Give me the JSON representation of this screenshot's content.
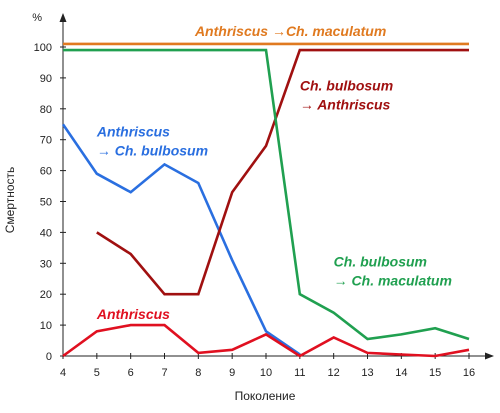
{
  "chart_data": {
    "type": "line",
    "xlabel": "Поколение",
    "ylabel": "Смертность",
    "yunit": "%",
    "xlim": [
      4,
      16
    ],
    "ylim": [
      0,
      100
    ],
    "x_ticks": [
      4,
      5,
      6,
      7,
      8,
      9,
      10,
      11,
      12,
      13,
      14,
      15,
      16
    ],
    "y_ticks": [
      0,
      10,
      20,
      30,
      40,
      50,
      60,
      70,
      80,
      90,
      100
    ],
    "grid": false,
    "series": [
      {
        "name": "Anthriscus →Ch. maculatum",
        "color": "#e07a20",
        "x": [
          4,
          16
        ],
        "y": [
          101,
          101
        ]
      },
      {
        "name": "Anthriscus → Ch. bulbosum",
        "color": "#2a6fe0",
        "x": [
          4,
          5,
          6,
          7,
          8,
          9,
          10,
          11
        ],
        "y": [
          75,
          59,
          53,
          62,
          56,
          31,
          8,
          0.5
        ]
      },
      {
        "name": "Ch. bulbosum → Anthriscus",
        "color": "#a01010",
        "x": [
          5,
          6,
          7,
          8,
          9,
          10,
          11,
          12,
          13,
          14,
          15,
          16
        ],
        "y": [
          40,
          33,
          20,
          20,
          53,
          68,
          99,
          99,
          99,
          99,
          99,
          99
        ]
      },
      {
        "name": "Ch. bulbosum → Ch. maculatum",
        "color": "#20a050",
        "x": [
          4,
          5,
          6,
          7,
          8,
          9,
          10,
          11,
          12,
          13,
          14,
          15,
          16
        ],
        "y": [
          99,
          99,
          99,
          99,
          99,
          99,
          99,
          20,
          14,
          5.5,
          7,
          9,
          5.5
        ]
      },
      {
        "name": "Anthriscus",
        "color": "#e01020",
        "x": [
          4,
          5,
          6,
          7,
          8,
          9,
          10,
          11,
          12,
          13,
          14,
          15,
          16
        ],
        "y": [
          0,
          8,
          10,
          10,
          1,
          2,
          7,
          0,
          6,
          1,
          0.5,
          0,
          2
        ]
      }
    ],
    "labels": [
      {
        "lines": [
          "Anthriscus →Ch. maculatum"
        ],
        "color": "#e07a20",
        "x": 7.9,
        "y": 103.5
      },
      {
        "lines": [
          "Ch. bulbosum",
          "→ Anthriscus"
        ],
        "color": "#a01010",
        "x": 11,
        "y": 86
      },
      {
        "lines": [
          "Anthriscus",
          "→ Ch. bulbosum"
        ],
        "color": "#2a6fe0",
        "x": 5.0,
        "y": 71
      },
      {
        "lines": [
          "Ch. bulbosum",
          "→ Ch. maculatum"
        ],
        "color": "#20a050",
        "x": 12.0,
        "y": 29
      },
      {
        "lines": [
          "Anthriscus"
        ],
        "color": "#e01020",
        "x": 5.0,
        "y": 12
      }
    ]
  }
}
